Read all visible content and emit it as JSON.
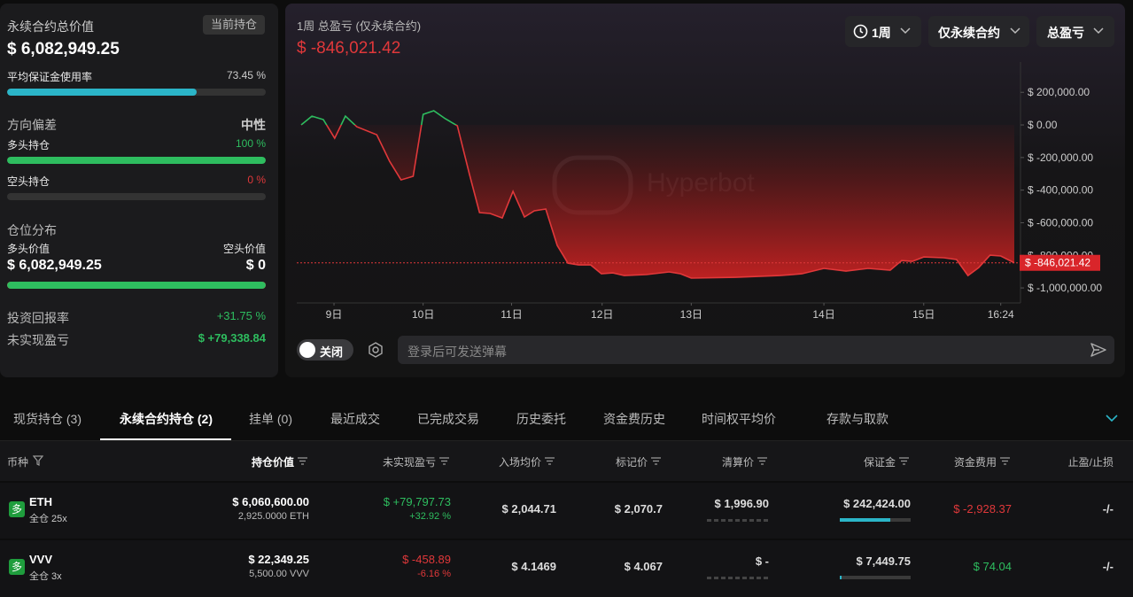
{
  "summary": {
    "title": "永续合约总价值",
    "badge": "当前持仓",
    "total_value": "$ 6,082,949.25",
    "margin_usage_title": "平均保证金使用率",
    "margin_usage": {
      "value": 73.45,
      "label": "73.45 %"
    },
    "bias_title": "方向偏差",
    "bias": "中性",
    "long_title": "多头持仓",
    "long_pct": {
      "value": 100,
      "label": "100 %"
    },
    "short_title": "空头持仓",
    "short_pct": {
      "value": 0,
      "label": "0 %"
    },
    "distribution_title": "仓位分布",
    "long_value_title": "多头价值",
    "short_value_title": "空头价值",
    "long_value": {
      "value": 6082949.25,
      "label": "$ 6,082,949.25"
    },
    "short_value": {
      "value": 0,
      "label": "$ 0"
    },
    "roi_title": "投资回报率",
    "roi": "+31.75 %",
    "upnl_title": "未实现盈亏",
    "upnl": "$ +79,338.84"
  },
  "pnl_chart": {
    "type": "line",
    "title": "1周 总盈亏 (仅永续合约)",
    "current": {
      "value": -846021.42,
      "label": "$ -846,021.42"
    },
    "watermark": "Hyperbot",
    "x": [
      0,
      1.5,
      3.1,
      4.7,
      6.2,
      7.8,
      10.6,
      12.4,
      14.0,
      15.7,
      17.1,
      18.6,
      20.2,
      21.9,
      23.6,
      25.0,
      26.5,
      28.2,
      29.7,
      31.3,
      32.7,
      34.3,
      35.9,
      37.4,
      38.9,
      40.6,
      42.1,
      43.7,
      45.3,
      48.4,
      51.6,
      53.2,
      54.7,
      60.9,
      67.1,
      70.2,
      73.3,
      76.4,
      79.5,
      82.6,
      84.2,
      85.7,
      87.3,
      90.1,
      91.9,
      93.5,
      95.0,
      96.6,
      98.1,
      100
    ],
    "values": [
      0,
      54000,
      33000,
      -82000,
      54000,
      -11000,
      -60000,
      -223000,
      -337000,
      -315000,
      65000,
      87000,
      38000,
      -5000,
      -304000,
      -538000,
      -543000,
      -571000,
      -408000,
      -565000,
      -527000,
      -516000,
      -739000,
      -848000,
      -859000,
      -859000,
      -913000,
      -908000,
      -924000,
      -918000,
      -902000,
      -913000,
      -940000,
      -935000,
      -924000,
      -913000,
      -880000,
      -897000,
      -880000,
      -891000,
      -832000,
      -837000,
      -810000,
      -815000,
      -826000,
      -924000,
      -875000,
      -799000,
      -804000,
      -846021.42
    ],
    "xlim": [
      0,
      100
    ],
    "xticks": [
      {
        "value": 4.6,
        "label": "9日"
      },
      {
        "value": 17.1,
        "label": "10日"
      },
      {
        "value": 29.5,
        "label": "11日"
      },
      {
        "value": 42.2,
        "label": "12日"
      },
      {
        "value": 54.7,
        "label": "13日"
      },
      {
        "value": 73.3,
        "label": "14日"
      },
      {
        "value": 87.3,
        "label": "15日"
      },
      {
        "value": 98.1,
        "label": "16:24"
      }
    ],
    "ylim": [
      -1092000,
      386000
    ],
    "yticks": [
      {
        "value": 200000,
        "label": "$ 200,000.00"
      },
      {
        "value": 0,
        "label": "$ 0.00"
      },
      {
        "value": -200000,
        "label": "$ -200,000.00"
      },
      {
        "value": -400000,
        "label": "$ -400,000.00"
      },
      {
        "value": -600000,
        "label": "$ -600,000.00"
      },
      {
        "value": -800000,
        "label": "$ -800,000.00"
      },
      {
        "value": -1000000,
        "label": "$ -1,000,000.00"
      }
    ],
    "colors": {
      "positive": "#2ebd5f",
      "negative": "#e0383a"
    }
  },
  "controls": {
    "period": "1周",
    "scope": "仅永续合约",
    "metric": "总盈亏",
    "toggle": "关闭",
    "chat_placeholder": "登录后可发送弹幕"
  },
  "tabs": [
    "现货持仓 (3)",
    "永续合约持仓 (2)",
    "挂单 (0)",
    "最近成交",
    "已完成交易",
    "历史委托",
    "资金费历史",
    "时间权平均价",
    "存款与取款"
  ],
  "active_tab": 1,
  "table": {
    "headers": [
      "币种",
      "持仓价值",
      "未实现盈亏",
      "入场均价",
      "标记价",
      "清算价",
      "保证金",
      "资金费用",
      "止盈/止损"
    ],
    "rows": [
      {
        "side": "多",
        "symbol": "ETH",
        "mode": "全仓 25x",
        "value": "$ 6,060,600.00",
        "size": "2,925.0000 ETH",
        "upnl": "$ +79,797.73",
        "upnl_pct": "+32.92 %",
        "upnl_tone": "up",
        "entry": "$ 2,044.71",
        "mark": "$ 2,070.7",
        "liq": "$ 1,996.90",
        "margin": "$ 242,424.00",
        "margin_bar": 71,
        "funding": "$ -2,928.37",
        "funding_tone": "down",
        "tpsl": "-/-"
      },
      {
        "side": "多",
        "symbol": "VVV",
        "mode": "全仓 3x",
        "value": "$ 22,349.25",
        "size": "5,500.00 VVV",
        "upnl": "$ -458.89",
        "upnl_pct": "-6.16 %",
        "upnl_tone": "down",
        "entry": "$ 4.1469",
        "mark": "$ 4.067",
        "liq": "$ -",
        "margin": "$ 7,449.75",
        "margin_bar": 3,
        "funding": "$ 74.04",
        "funding_tone": "up",
        "tpsl": "-/-"
      }
    ]
  }
}
